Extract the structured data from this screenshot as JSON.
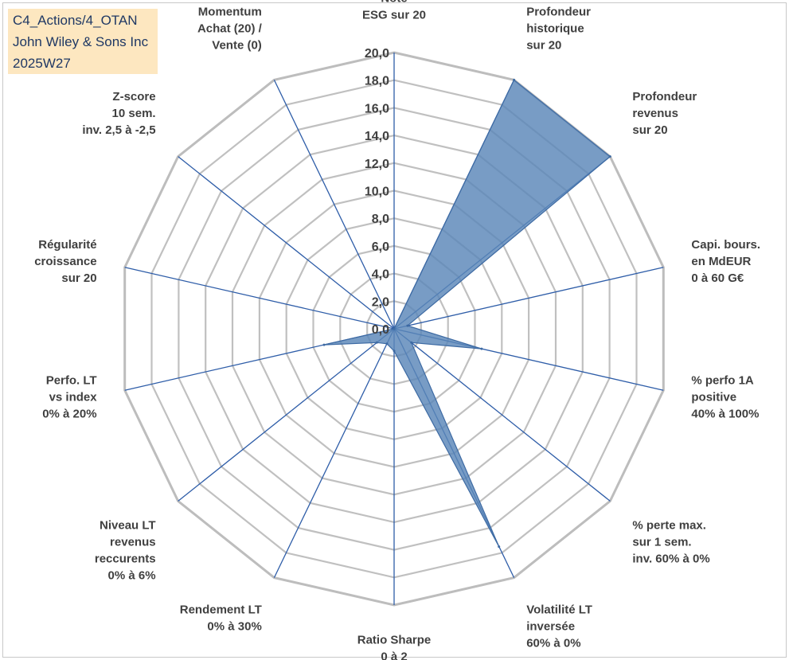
{
  "title_box": {
    "line1": "C4_Actions/4_OTAN",
    "line2": "John Wiley & Sons Inc",
    "line3": "2025W27"
  },
  "chart_data": {
    "type": "radar",
    "axes": [
      [
        "Note",
        "ESG sur 20"
      ],
      [
        "Profondeur",
        "historique",
        "sur 20"
      ],
      [
        "Profondeur",
        "revenus",
        "sur 20"
      ],
      [
        "Capi. bours.",
        "en MdEUR",
        "0 à 60 G€"
      ],
      [
        "% perfo 1A",
        "positive",
        "40% à 100%"
      ],
      [
        "% perte max.",
        "sur 1 sem.",
        "inv. 60% à 0%"
      ],
      [
        "Volatilité LT",
        "inversée",
        "60% à 0%"
      ],
      [
        "Ratio Sharpe",
        "0 à 2"
      ],
      [
        "Rendement LT",
        "0% à 30%"
      ],
      [
        "Niveau LT",
        "revenus",
        "reccurents",
        "0% à 6%"
      ],
      [
        "Perfo. LT",
        "vs index",
        "0% à 20%"
      ],
      [
        "Régularité",
        "croissance",
        "sur 20"
      ],
      [
        "Z-score",
        "10 sem.",
        "inv. 2,5 à -2,5"
      ],
      [
        "Momentum",
        "Achat (20) /",
        "Vente (0)"
      ]
    ],
    "values": [
      0.0,
      20.0,
      20.0,
      1.0,
      6.5,
      1.6,
      17.5,
      1.6,
      1.2,
      1.6,
      5.2,
      0.0,
      0.0,
      0.0
    ],
    "ticks": [
      "0,0",
      "2,0",
      "4,0",
      "6,0",
      "8,0",
      "10,0",
      "12,0",
      "14,0",
      "16,0",
      "18,0",
      "20,0"
    ],
    "rmin": 0,
    "rmax": 20,
    "grid": true,
    "legend": "none",
    "colors": {
      "fill": "#5a86b8",
      "stroke": "#3d6aa3",
      "spoke": "#2e5da8",
      "grid": "#c0c0c0",
      "grid_outer": "#bdbdbd"
    }
  }
}
